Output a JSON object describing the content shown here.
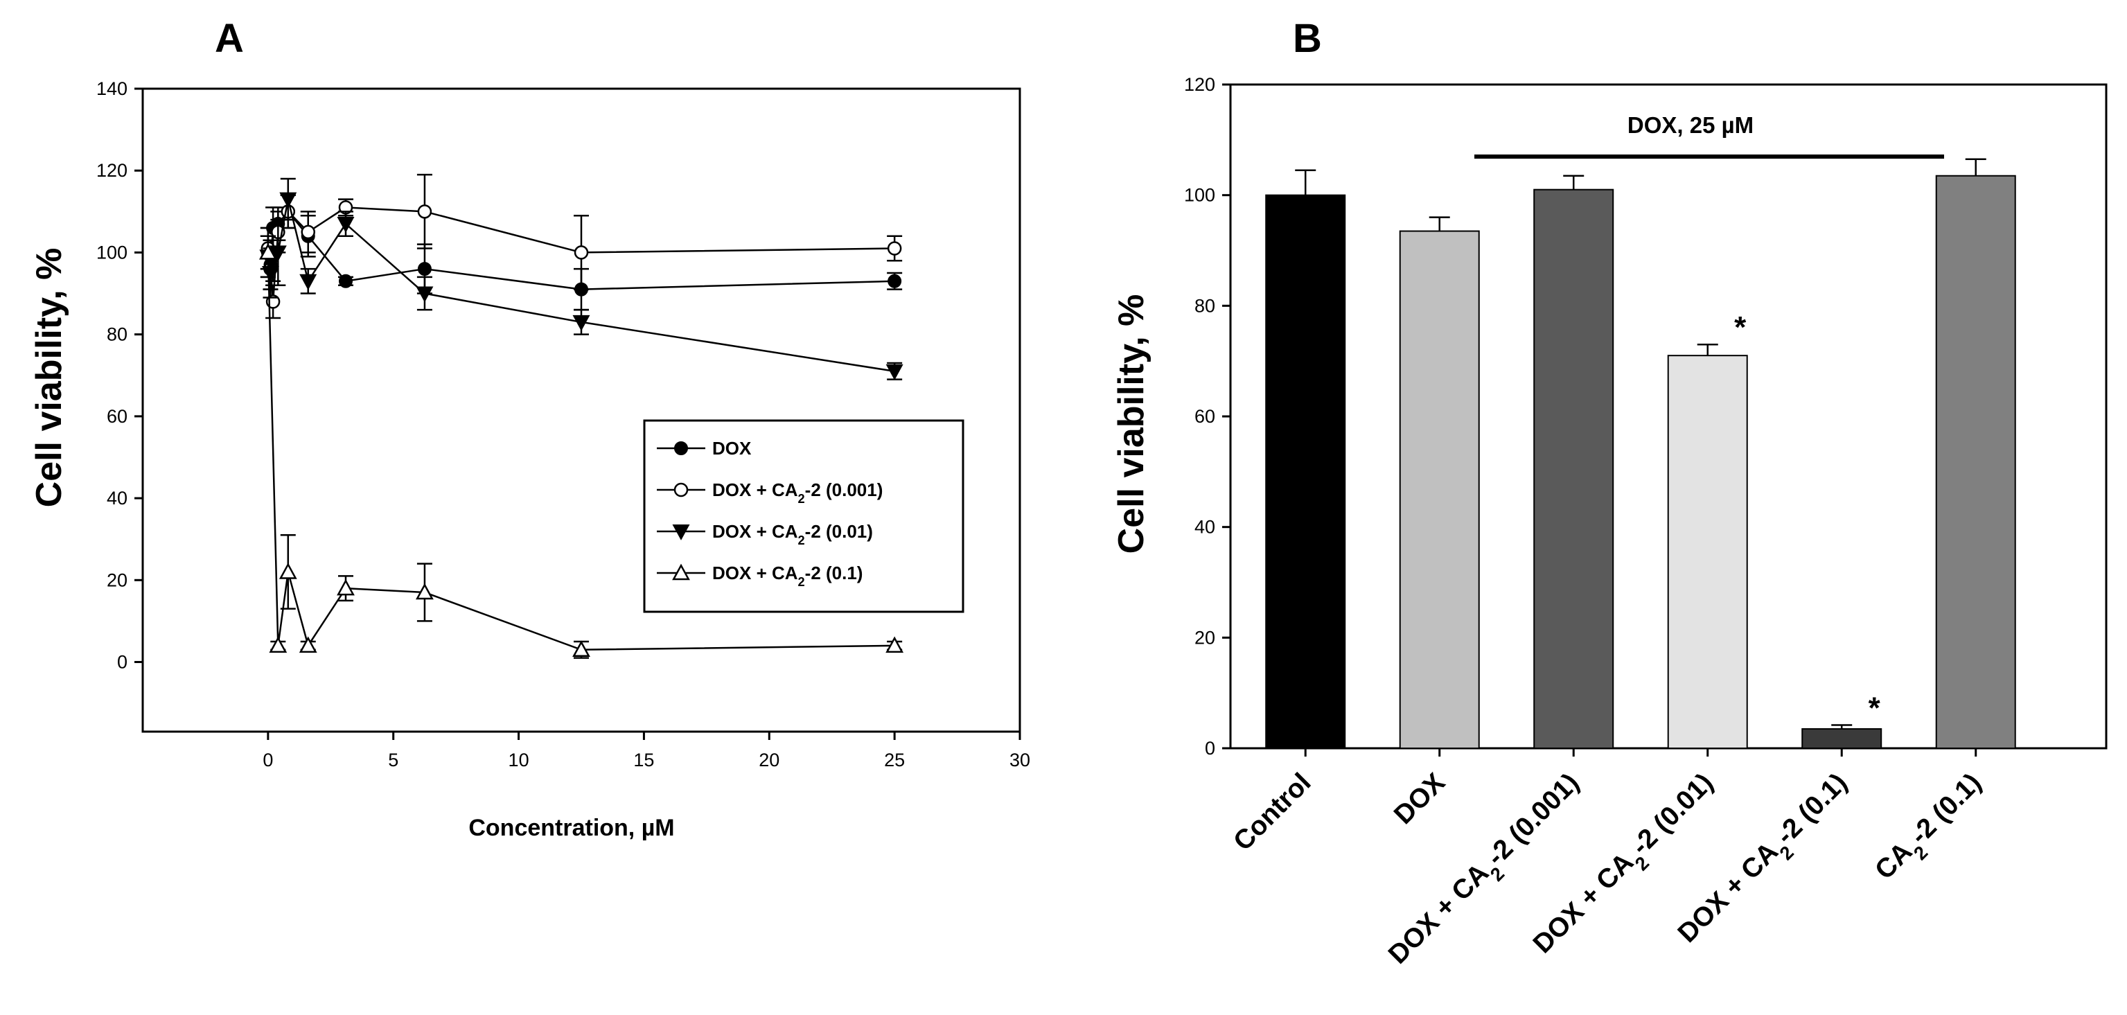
{
  "chart_data": [
    {
      "type": "line",
      "panel_label": "A",
      "xlabel": "Concentration, µM",
      "ylabel": "Cell viability, %",
      "xlim": [
        -5,
        30
      ],
      "ylim": [
        -17,
        140
      ],
      "x_ticks": [
        "0",
        "5",
        "10",
        "15",
        "20",
        "25",
        "30"
      ],
      "y_ticks": [
        "0",
        "20",
        "40",
        "60",
        "80",
        "100",
        "120",
        "140"
      ],
      "x_tick_values": [
        0,
        5,
        10,
        15,
        20,
        25,
        30
      ],
      "y_tick_values": [
        0,
        20,
        40,
        60,
        80,
        100,
        120,
        140
      ],
      "legend_position": "center-right",
      "series": [
        {
          "name": "DOX",
          "legend_prefix": "DOX",
          "legend_suffix": "",
          "marker": "circle-filled",
          "x": [
            0,
            0.1,
            0.2,
            0.4,
            0.8,
            1.6,
            3.1,
            6.25,
            12.5,
            25
          ],
          "y": [
            100,
            97,
            106,
            107,
            110,
            104,
            93,
            96,
            91,
            93
          ],
          "err": [
            6,
            6,
            5,
            4,
            4,
            5,
            1,
            6,
            5,
            2
          ]
        },
        {
          "name": "DOX + CA2-2 (0.001)",
          "legend_prefix": "DOX + CA",
          "legend_sub": "2",
          "legend_suffix": "-2 (0.001)",
          "marker": "circle-open",
          "x": [
            0,
            0.1,
            0.2,
            0.4,
            0.8,
            1.6,
            3.1,
            6.25,
            12.5,
            25
          ],
          "y": [
            101,
            96,
            88,
            105,
            110,
            105,
            111,
            110,
            100,
            101
          ],
          "err": [
            5,
            5,
            4,
            5,
            4,
            5,
            2,
            9,
            9,
            3
          ]
        },
        {
          "name": "DOX + CA2-2 (0.01)",
          "legend_prefix": "DOX + CA",
          "legend_sub": "2",
          "legend_suffix": "-2 (0.01)",
          "marker": "triangle-down-filled",
          "x": [
            0,
            0.1,
            0.2,
            0.4,
            0.8,
            1.6,
            3.1,
            6.25,
            12.5,
            25
          ],
          "y": [
            99,
            95,
            98,
            100,
            113,
            93,
            107,
            90,
            83,
            71
          ],
          "err": [
            5,
            6,
            5,
            8,
            5,
            3,
            3,
            4,
            3,
            2
          ]
        },
        {
          "name": "DOX + CA2-2 (0.1)",
          "legend_prefix": "DOX + CA",
          "legend_sub": "2",
          "legend_suffix": "-2 (0.1)",
          "marker": "triangle-up-open",
          "x": [
            0,
            0.4,
            0.8,
            1.6,
            3.1,
            6.25,
            12.5,
            25
          ],
          "y": [
            100,
            4,
            22,
            4,
            18,
            17,
            3,
            4
          ],
          "err": [
            4,
            1,
            9,
            1,
            3,
            7,
            2,
            1
          ]
        }
      ]
    },
    {
      "type": "bar",
      "panel_label": "B",
      "xlabel": "",
      "ylabel": "Cell viability, %",
      "ylim": [
        0,
        120
      ],
      "y_ticks": [
        "0",
        "20",
        "40",
        "60",
        "80",
        "100",
        "120"
      ],
      "y_tick_values": [
        0,
        20,
        40,
        60,
        80,
        100,
        120
      ],
      "categories": [
        "Control",
        "DOX",
        "DOX + CA2-2 (0.001)",
        "DOX + CA2-2 (0.01)",
        "DOX + CA2-2 (0.1)",
        "CA2-2 (0.1)"
      ],
      "category_labels": [
        {
          "prefix": "Control",
          "sub": "",
          "suffix": ""
        },
        {
          "prefix": "DOX",
          "sub": "",
          "suffix": ""
        },
        {
          "prefix": "DOX + CA",
          "sub": "2",
          "suffix": "-2 (0.001)"
        },
        {
          "prefix": "DOX + CA",
          "sub": "2",
          "suffix": "-2 (0.01)"
        },
        {
          "prefix": "DOX + CA",
          "sub": "2",
          "suffix": "-2 (0.1)"
        },
        {
          "prefix": "CA",
          "sub": "2",
          "suffix": "-2 (0.1)"
        }
      ],
      "values": [
        100,
        93.5,
        101,
        71,
        3.5,
        103.5
      ],
      "errors": [
        4.5,
        2.5,
        2.5,
        2,
        0.7,
        3
      ],
      "colors": [
        "#000000",
        "#c0c0c0",
        "#5a5a5a",
        "#e3e3e3",
        "#3a3a3a",
        "#808080"
      ],
      "significance": [
        "",
        "",
        "",
        "*",
        "*",
        ""
      ],
      "bracket_label": "DOX, 25 µM",
      "bracket_span": [
        "DOX",
        "DOX + CA2-2 (0.1)"
      ]
    }
  ]
}
